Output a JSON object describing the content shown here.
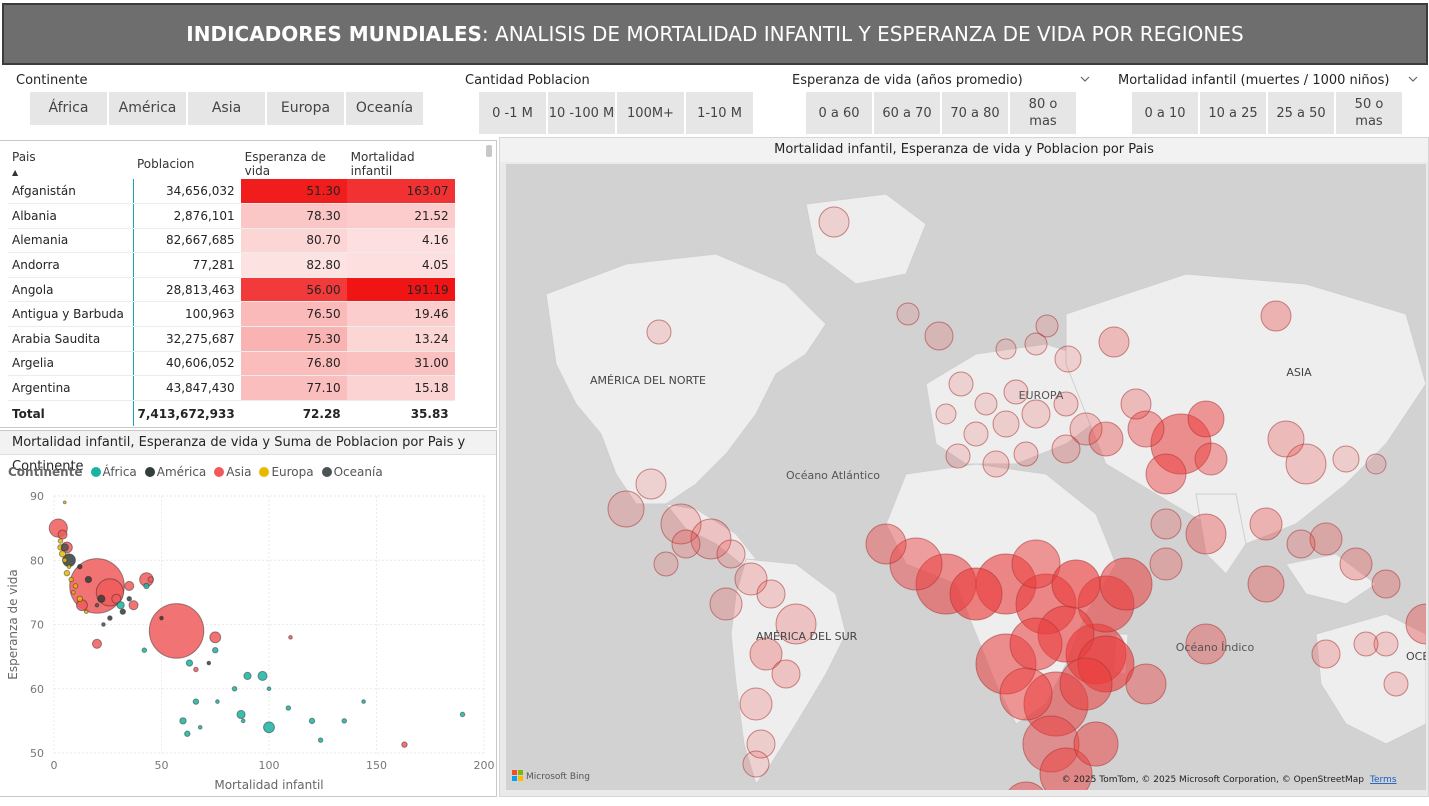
{
  "header": {
    "title_bold": "INDICADORES MUNDIALES",
    "title_rest": ": ANALISIS DE MORTALIDAD INFANTIL Y ESPERANZA DE VIDA POR REGIONES"
  },
  "slicers": {
    "continente": {
      "title": "Continente",
      "options": [
        "África",
        "América",
        "Asia",
        "Europa",
        "Oceanía"
      ]
    },
    "poblacion": {
      "title": "Cantidad Poblacion",
      "options": [
        "0 -1 M",
        "10 -100 M",
        "100M+",
        "1-10 M"
      ]
    },
    "esperanza": {
      "title": "Esperanza de vida (años promedio)",
      "options": [
        "0 a 60",
        "60 a 70",
        "70 a 80",
        "80 o mas"
      ]
    },
    "mortalidad": {
      "title": "Mortalidad infantil (muertes / 1000 niños)",
      "options": [
        "0 a 10",
        "10 a 25",
        "25 a 50",
        "50 o mas"
      ]
    }
  },
  "table": {
    "headers": {
      "country": "Pais",
      "population": "Poblacion",
      "life": "Esperanza de vida",
      "mortality": "Mortalidad infantil"
    },
    "rows": [
      {
        "country": "Afganistán",
        "population": "34,656,032",
        "life": "51.30",
        "mortality": "163.07",
        "life_v": 51.3,
        "mort_v": 163.07
      },
      {
        "country": "Albania",
        "population": "2,876,101",
        "life": "78.30",
        "mortality": "21.52",
        "life_v": 78.3,
        "mort_v": 21.52
      },
      {
        "country": "Alemania",
        "population": "82,667,685",
        "life": "80.70",
        "mortality": "4.16",
        "life_v": 80.7,
        "mort_v": 4.16
      },
      {
        "country": "Andorra",
        "population": "77,281",
        "life": "82.80",
        "mortality": "4.05",
        "life_v": 82.8,
        "mort_v": 4.05
      },
      {
        "country": "Angola",
        "population": "28,813,463",
        "life": "56.00",
        "mortality": "191.19",
        "life_v": 56.0,
        "mort_v": 191.19
      },
      {
        "country": "Antigua y Barbuda",
        "population": "100,963",
        "life": "76.50",
        "mortality": "19.46",
        "life_v": 76.5,
        "mort_v": 19.46
      },
      {
        "country": "Arabia Saudita",
        "population": "32,275,687",
        "life": "75.30",
        "mortality": "13.24",
        "life_v": 75.3,
        "mort_v": 13.24
      },
      {
        "country": "Argelia",
        "population": "40,606,052",
        "life": "76.80",
        "mortality": "31.00",
        "life_v": 76.8,
        "mort_v": 31.0
      },
      {
        "country": "Argentina",
        "population": "43,847,430",
        "life": "77.10",
        "mortality": "15.18",
        "life_v": 77.1,
        "mort_v": 15.18
      }
    ],
    "total": {
      "label": "Total",
      "population": "7,413,672,933",
      "life": "72.28",
      "mortality": "35.83"
    }
  },
  "scatter": {
    "title": "Mortalidad infantil, Esperanza de vida y Suma de Poblacion por Pais y Continente",
    "legend_title": "Continente",
    "legend": [
      {
        "name": "África",
        "color": "#1ab3a1"
      },
      {
        "name": "América",
        "color": "#333d3b"
      },
      {
        "name": "Asia",
        "color": "#f05a5a"
      },
      {
        "name": "Europa",
        "color": "#e8b800"
      },
      {
        "name": "Oceanía",
        "color": "#4b5355"
      }
    ]
  },
  "chart_data": {
    "type": "scatter",
    "xlabel": "Mortalidad infantil",
    "ylabel": "Esperanza de vida",
    "xlim": [
      0,
      200
    ],
    "ylim": [
      50,
      90
    ],
    "x_ticks": [
      "0",
      "50",
      "100",
      "150",
      "200"
    ],
    "y_ticks": [
      "50",
      "60",
      "70",
      "80",
      "90"
    ],
    "series": [
      {
        "name": "Asia",
        "color": "#f05a5a",
        "points": [
          [
            2,
            85,
            20
          ],
          [
            4,
            84,
            10
          ],
          [
            20,
            76,
            60
          ],
          [
            26,
            75,
            30
          ],
          [
            57,
            69,
            60
          ],
          [
            13,
            73,
            12
          ],
          [
            35,
            76,
            10
          ],
          [
            43,
            77,
            15
          ],
          [
            6,
            82,
            12
          ],
          [
            75,
            68,
            12
          ],
          [
            37,
            73,
            10
          ],
          [
            20,
            67,
            10
          ],
          [
            110,
            68,
            4
          ],
          [
            163,
            51.3,
            6
          ],
          [
            29,
            74,
            10
          ],
          [
            66,
            63,
            5
          ],
          [
            45,
            77,
            6
          ]
        ]
      },
      {
        "name": "África",
        "color": "#1ab3a1",
        "points": [
          [
            100,
            54,
            12
          ],
          [
            97,
            62,
            10
          ],
          [
            90,
            62,
            8
          ],
          [
            87,
            56,
            9
          ],
          [
            190,
            56,
            5
          ],
          [
            63,
            64,
            7
          ],
          [
            75,
            66,
            6
          ],
          [
            66,
            58,
            6
          ],
          [
            84,
            60,
            5
          ],
          [
            60,
            55,
            7
          ],
          [
            120,
            55,
            6
          ],
          [
            135,
            55,
            5
          ],
          [
            31,
            73,
            8
          ],
          [
            43,
            76,
            6
          ],
          [
            144,
            58,
            4
          ],
          [
            42,
            66,
            5
          ],
          [
            109,
            57,
            5
          ],
          [
            62,
            53,
            6
          ],
          [
            124,
            52,
            5
          ],
          [
            76,
            58,
            4
          ],
          [
            88,
            55,
            4
          ],
          [
            100,
            60,
            4
          ],
          [
            68,
            54,
            4
          ]
        ]
      },
      {
        "name": "América",
        "color": "#333d3b",
        "points": [
          [
            7,
            80,
            14
          ],
          [
            22,
            74,
            8
          ],
          [
            16,
            77,
            7
          ],
          [
            32,
            72,
            6
          ],
          [
            26,
            71,
            5
          ],
          [
            12,
            79,
            5
          ],
          [
            35,
            74,
            5
          ],
          [
            50,
            71,
            4
          ],
          [
            72,
            64,
            4
          ]
        ]
      },
      {
        "name": "Europa",
        "color": "#e8b800",
        "points": [
          [
            3,
            82,
            6
          ],
          [
            4,
            81,
            7
          ],
          [
            6,
            78,
            6
          ],
          [
            8,
            77,
            5
          ],
          [
            12,
            74,
            6
          ],
          [
            5,
            80,
            5
          ],
          [
            10,
            76,
            5
          ],
          [
            15,
            72,
            4
          ],
          [
            3,
            83,
            5
          ],
          [
            7,
            79,
            4
          ],
          [
            9,
            75,
            4
          ],
          [
            5,
            89,
            3
          ]
        ]
      },
      {
        "name": "Oceanía",
        "color": "#4b5355",
        "points": [
          [
            5,
            82,
            8
          ],
          [
            23,
            70,
            4
          ],
          [
            20,
            73,
            4
          ]
        ]
      }
    ]
  },
  "map": {
    "title": "Mortalidad infantil, Esperanza de vida y Poblacion por Pais",
    "labels": [
      "AMÉRICA DEL NORTE",
      "Océano Atlántico",
      "EUROPA",
      "ASIA",
      "AMÉRICA DEL SUR",
      "Océano Índico",
      "OCEANÍA"
    ],
    "attribution": "© 2025 TomTom, © 2025 Microsoft Corporation, © OpenStreetMap",
    "terms": "Terms",
    "logo": "Microsoft Bing"
  }
}
